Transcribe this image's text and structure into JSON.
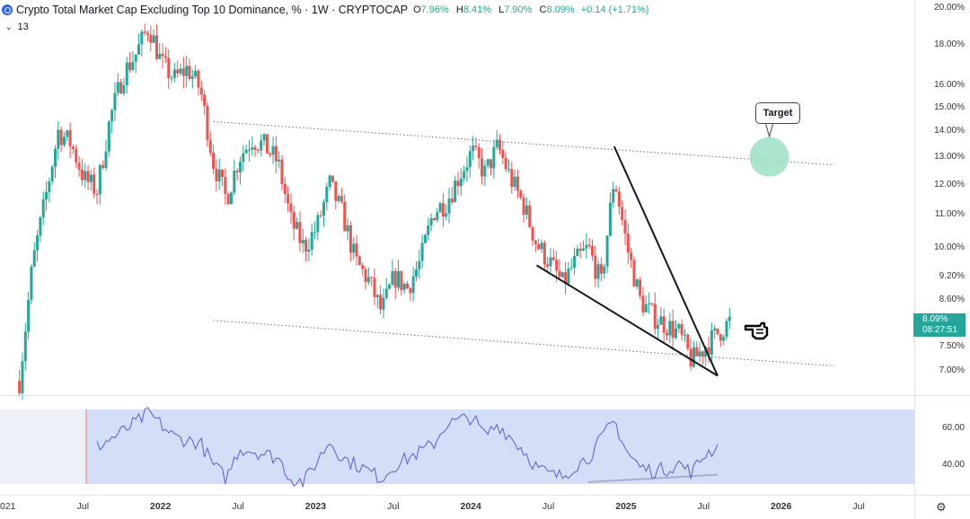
{
  "header": {
    "title": "Crypto Total Market Cap Excluding Top 10 Dominance, % · 1W · CRYPTOCAP",
    "open_label": "O",
    "open": "7.96%",
    "high_label": "H",
    "high": "8.41%",
    "low_label": "L",
    "low": "7.90%",
    "close_label": "C",
    "close": "8.09%",
    "change": "+0.14 (+1.71%)"
  },
  "indicator": {
    "chevron": "⌄",
    "length": "13"
  },
  "price_axis": [
    "20.00%",
    "18.00%",
    "16.00%",
    "15.00%",
    "14.00%",
    "13.00%",
    "12.00%",
    "11.00%",
    "10.00%",
    "9.20%",
    "8.60%",
    "7.50%",
    "7.00%"
  ],
  "rsi_axis": [
    "60.00",
    "40.00"
  ],
  "last_price": {
    "value": "8.09%",
    "countdown": "08:27:51"
  },
  "time_axis": [
    {
      "label": "021",
      "bold": false
    },
    {
      "label": "Jul",
      "bold": false
    },
    {
      "label": "2022",
      "bold": true
    },
    {
      "label": "Jul",
      "bold": false
    },
    {
      "label": "2023",
      "bold": true
    },
    {
      "label": "Jul",
      "bold": false
    },
    {
      "label": "2024",
      "bold": true
    },
    {
      "label": "Jul",
      "bold": false
    },
    {
      "label": "2025",
      "bold": true
    },
    {
      "label": "Jul",
      "bold": false
    },
    {
      "label": "2026",
      "bold": true
    },
    {
      "label": "Jul",
      "bold": false
    }
  ],
  "annotation": {
    "target": "Target",
    "pointer_icon": "pointing-hand-icon"
  },
  "settings_icon": "gear-icon",
  "colors": {
    "up": "#26a69a",
    "down": "#ef5350",
    "rsi_line": "#5b5fc7",
    "rsi_band": "#c9d6f5",
    "target": "#9ee0c4"
  },
  "chart_data": {
    "type": "candlestick",
    "scale": "log",
    "interval": "1W",
    "ylim": [
      6.7,
      20
    ],
    "path": [
      [
        "2021-02",
        6.8
      ],
      [
        "2021-03",
        9.5
      ],
      [
        "2021-04",
        11.5
      ],
      [
        "2021-05",
        14.0
      ],
      [
        "2021-06",
        13.5
      ],
      [
        "2021-07",
        12.2
      ],
      [
        "2021-08",
        11.8
      ],
      [
        "2021-09",
        14.5
      ],
      [
        "2021-10",
        16.5
      ],
      [
        "2021-11",
        17.5
      ],
      [
        "2021-12",
        19.0
      ],
      [
        "2022-01",
        17.0
      ],
      [
        "2022-02",
        16.3
      ],
      [
        "2022-03",
        16.8
      ],
      [
        "2022-04",
        15.8
      ],
      [
        "2022-05",
        12.8
      ],
      [
        "2022-06",
        11.5
      ],
      [
        "2022-07",
        13.0
      ],
      [
        "2022-08",
        13.7
      ],
      [
        "2022-09",
        13.4
      ],
      [
        "2022-10",
        12.8
      ],
      [
        "2022-11",
        10.8
      ],
      [
        "2022-12",
        10.0
      ],
      [
        "2023-01",
        10.6
      ],
      [
        "2023-02",
        12.0
      ],
      [
        "2023-03",
        11.0
      ],
      [
        "2023-04",
        9.6
      ],
      [
        "2023-05",
        9.1
      ],
      [
        "2023-06",
        8.3
      ],
      [
        "2023-07",
        9.2
      ],
      [
        "2023-08",
        8.9
      ],
      [
        "2023-09",
        9.6
      ],
      [
        "2023-10",
        11.1
      ],
      [
        "2023-11",
        11.4
      ],
      [
        "2023-12",
        12.3
      ],
      [
        "2024-01",
        13.2
      ],
      [
        "2024-02",
        12.4
      ],
      [
        "2024-03",
        13.4
      ],
      [
        "2024-04",
        12.2
      ],
      [
        "2024-05",
        11.3
      ],
      [
        "2024-06",
        10.1
      ],
      [
        "2024-07",
        9.6
      ],
      [
        "2024-08",
        9.0
      ],
      [
        "2024-09",
        9.6
      ],
      [
        "2024-10",
        10.0
      ],
      [
        "2024-11",
        9.0
      ],
      [
        "2024-12",
        12.3
      ],
      [
        "2025-01",
        10.0
      ],
      [
        "2025-02",
        8.6
      ],
      [
        "2025-03",
        8.2
      ],
      [
        "2025-04",
        8.0
      ],
      [
        "2025-05",
        7.8
      ],
      [
        "2025-06",
        7.2
      ],
      [
        "2025-07",
        7.5
      ],
      [
        "2025-08",
        7.8
      ],
      [
        "2025-09",
        8.09
      ]
    ],
    "rsi_path": [
      [
        "2021-08",
        50.0
      ],
      [
        "2021-10",
        58.0
      ],
      [
        "2021-12",
        68.0
      ],
      [
        "2022-02",
        55.0
      ],
      [
        "2022-04",
        52.0
      ],
      [
        "2022-05",
        40.0
      ],
      [
        "2022-06",
        33.0
      ],
      [
        "2022-07",
        49.0
      ],
      [
        "2022-08",
        48.0
      ],
      [
        "2022-10",
        44.0
      ],
      [
        "2022-11",
        33.0
      ],
      [
        "2022-12",
        31.0
      ],
      [
        "2023-01",
        42.0
      ],
      [
        "2023-02",
        53.0
      ],
      [
        "2023-03",
        44.0
      ],
      [
        "2023-05",
        37.0
      ],
      [
        "2023-06",
        33.0
      ],
      [
        "2023-07",
        40.0
      ],
      [
        "2023-10",
        51.0
      ],
      [
        "2023-11",
        62.0
      ],
      [
        "2024-01",
        66.0
      ],
      [
        "2024-02",
        56.0
      ],
      [
        "2024-03",
        62.0
      ],
      [
        "2024-05",
        48.0
      ],
      [
        "2024-06",
        39.0
      ],
      [
        "2024-07",
        35.0
      ],
      [
        "2024-08",
        34.0
      ],
      [
        "2024-09",
        40.0
      ],
      [
        "2024-10",
        44.0
      ],
      [
        "2024-11",
        54.0
      ],
      [
        "2024-12",
        64.0
      ],
      [
        "2025-01",
        47.0
      ],
      [
        "2025-02",
        39.0
      ],
      [
        "2025-03",
        37.0
      ],
      [
        "2025-04",
        38.0
      ],
      [
        "2025-05",
        41.0
      ],
      [
        "2025-06",
        36.0
      ],
      [
        "2025-07",
        46.0
      ],
      [
        "2025-08",
        50.0
      ]
    ],
    "rsi_band": [
      30,
      70
    ],
    "trendlines": [
      {
        "style": "dotted",
        "from": [
          "2022-05",
          14.4
        ],
        "to": [
          "2026-05",
          12.7
        ]
      },
      {
        "style": "dotted",
        "from": [
          "2022-05",
          8.1
        ],
        "to": [
          "2026-05",
          7.1
        ]
      },
      {
        "style": "solid",
        "from": [
          "2024-06",
          9.5
        ],
        "to": [
          "2025-08",
          6.9
        ]
      },
      {
        "style": "solid",
        "from": [
          "2024-12",
          13.4
        ],
        "to": [
          "2025-08",
          6.9
        ]
      },
      {
        "style": "solid-rsi",
        "from": [
          "2024-10",
          31.0
        ],
        "to": [
          "2025-08",
          35.0
        ]
      }
    ],
    "target": [
      "2025-12",
      13.0
    ]
  }
}
